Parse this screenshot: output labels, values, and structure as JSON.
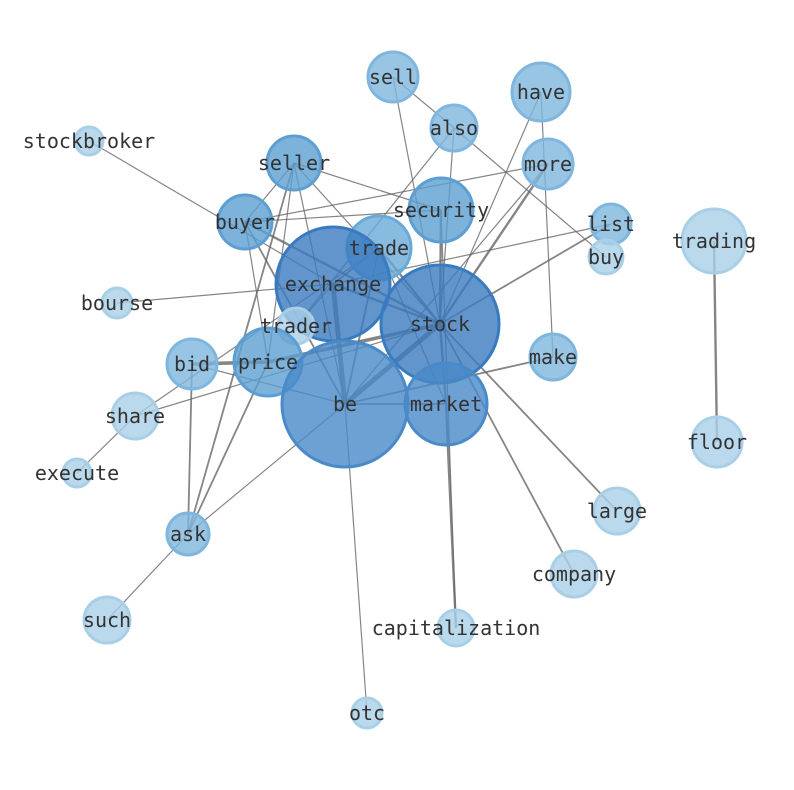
{
  "nodes": [
    {
      "id": "sell",
      "label": "sell",
      "color": "#7fb6dd",
      "size": 25
    },
    {
      "id": "also",
      "label": "also",
      "color": "#7fb6dd",
      "size": 23
    },
    {
      "id": "have",
      "label": "have",
      "color": "#7fb6dd",
      "size": 29
    },
    {
      "id": "more",
      "label": "more",
      "color": "#7fb6dd",
      "size": 25
    },
    {
      "id": "stockbroker",
      "label": "stockbroker",
      "color": "#a9cfe7",
      "size": 14
    },
    {
      "id": "seller",
      "label": "seller",
      "color": "#5d9fd2",
      "size": 27
    },
    {
      "id": "security",
      "label": "security",
      "color": "#5d9fd2",
      "size": 32
    },
    {
      "id": "buyer",
      "label": "buyer",
      "color": "#5d9fd2",
      "size": 27
    },
    {
      "id": "trade",
      "label": "trade",
      "color": "#6aaad8",
      "size": 32
    },
    {
      "id": "list",
      "label": "list",
      "color": "#7fb6dd",
      "size": 20
    },
    {
      "id": "buy",
      "label": "buy",
      "color": "#a9cfe7",
      "size": 17
    },
    {
      "id": "trading",
      "label": "trading",
      "color": "#a9cfe7",
      "size": 32
    },
    {
      "id": "exchange",
      "label": "exchange",
      "color": "#3a7bbf",
      "size": 57
    },
    {
      "id": "bourse",
      "label": "bourse",
      "color": "#a9cfe7",
      "size": 15
    },
    {
      "id": "trader",
      "label": "trader",
      "color": "#a9cfe7",
      "size": 18
    },
    {
      "id": "stock",
      "label": "stock",
      "color": "#3a7bbf",
      "size": 59
    },
    {
      "id": "bid",
      "label": "bid",
      "color": "#7fb6dd",
      "size": 25
    },
    {
      "id": "price",
      "label": "price",
      "color": "#5d9fd2",
      "size": 34
    },
    {
      "id": "make",
      "label": "make",
      "color": "#7fb6dd",
      "size": 23
    },
    {
      "id": "be",
      "label": "be",
      "color": "#4a8ac8",
      "size": 63
    },
    {
      "id": "market",
      "label": "market",
      "color": "#4a8ac8",
      "size": 41
    },
    {
      "id": "share",
      "label": "share",
      "color": "#a9cfe7",
      "size": 23
    },
    {
      "id": "execute",
      "label": "execute",
      "color": "#a9cfe7",
      "size": 14
    },
    {
      "id": "floor",
      "label": "floor",
      "color": "#a9cfe7",
      "size": 25
    },
    {
      "id": "large",
      "label": "large",
      "color": "#a9cfe7",
      "size": 23
    },
    {
      "id": "ask",
      "label": "ask",
      "color": "#7fb6dd",
      "size": 21
    },
    {
      "id": "company",
      "label": "company",
      "color": "#a9cfe7",
      "size": 23
    },
    {
      "id": "such",
      "label": "such",
      "color": "#a9cfe7",
      "size": 23
    },
    {
      "id": "capitalization",
      "label": "capitalization",
      "color": "#a9cfe7",
      "size": 18
    },
    {
      "id": "otc",
      "label": "otc",
      "color": "#a9cfe7",
      "size": 15
    }
  ],
  "edges": [
    [
      "stockbroker",
      "exchange",
      1
    ],
    [
      "sell",
      "also",
      1
    ],
    [
      "sell",
      "stock",
      1
    ],
    [
      "also",
      "buy",
      1
    ],
    [
      "also",
      "trader",
      1
    ],
    [
      "also",
      "stock",
      1
    ],
    [
      "have",
      "stock",
      1
    ],
    [
      "have",
      "make",
      1
    ],
    [
      "more",
      "stock",
      2
    ],
    [
      "more",
      "be",
      1
    ],
    [
      "more",
      "buyer",
      1
    ],
    [
      "seller",
      "security",
      1
    ],
    [
      "seller",
      "be",
      1
    ],
    [
      "seller",
      "ask",
      1.5
    ],
    [
      "seller",
      "buyer",
      1
    ],
    [
      "seller",
      "stock",
      1
    ],
    [
      "seller",
      "price",
      1
    ],
    [
      "buyer",
      "security",
      1
    ],
    [
      "buyer",
      "price",
      1
    ],
    [
      "buyer",
      "stock",
      2
    ],
    [
      "buyer",
      "be",
      1.5
    ],
    [
      "exchange",
      "bourse",
      1
    ],
    [
      "exchange",
      "stock",
      2
    ],
    [
      "exchange",
      "be",
      4
    ],
    [
      "exchange",
      "list",
      1
    ],
    [
      "exchange",
      "trade",
      1.5
    ],
    [
      "exchange",
      "trader",
      1
    ],
    [
      "trade",
      "stock",
      2
    ],
    [
      "trade",
      "be",
      1.5
    ],
    [
      "trade",
      "share",
      1
    ],
    [
      "trade",
      "market",
      1
    ],
    [
      "stock",
      "list",
      1.5
    ],
    [
      "stock",
      "market",
      2
    ],
    [
      "stock",
      "be",
      4
    ],
    [
      "stock",
      "price",
      3
    ],
    [
      "stock",
      "large",
      1.5
    ],
    [
      "stock",
      "company",
      1.5
    ],
    [
      "stock",
      "share",
      1
    ],
    [
      "stock",
      "security",
      2
    ],
    [
      "be",
      "make",
      1.5
    ],
    [
      "be",
      "ask",
      1
    ],
    [
      "be",
      "otc",
      1
    ],
    [
      "be",
      "market",
      1.5
    ],
    [
      "be",
      "bid",
      1
    ],
    [
      "bid",
      "price",
      3
    ],
    [
      "bid",
      "ask",
      1.5
    ],
    [
      "share",
      "execute",
      1
    ],
    [
      "trading",
      "floor",
      2
    ],
    [
      "ask",
      "such",
      1
    ],
    [
      "ask",
      "price",
      1.5
    ],
    [
      "market",
      "capitalization",
      2
    ],
    [
      "security",
      "capitalization",
      1
    ]
  ]
}
